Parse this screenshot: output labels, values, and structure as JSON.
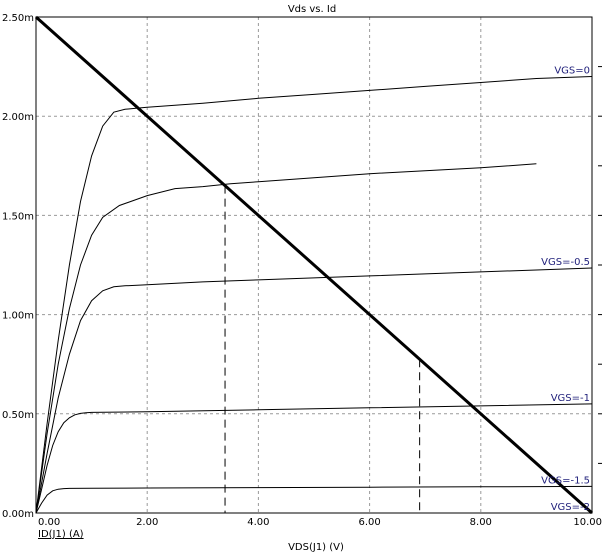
{
  "chart_data": {
    "type": "line",
    "title": "Vds vs. Id",
    "xlabel": "VDS(J1) (V)",
    "ylabel": "ID(J1) (A)",
    "xlim": [
      0,
      10
    ],
    "ylim": [
      0,
      2.5
    ],
    "x_ticks": [
      0,
      2,
      4,
      6,
      8,
      10
    ],
    "x_tick_labels": [
      "0.00",
      "2.00",
      "4.00",
      "6.00",
      "8.00",
      "10.00"
    ],
    "y_ticks": [
      0,
      0.5,
      1.0,
      1.5,
      2.0,
      2.5
    ],
    "y_tick_labels": [
      "0.00m",
      "0.50m",
      "1.00m",
      "1.50m",
      "2.00m",
      "2.50m"
    ],
    "grid": true,
    "grid_style": "dashed",
    "colors": {
      "curve": "#000000",
      "grid": "#9a9a9a",
      "label_text": "#1f1f7a",
      "axis_text": "#000000"
    },
    "series": [
      {
        "name": "VGS=0",
        "x": [
          0,
          0.2,
          0.4,
          0.6,
          0.8,
          1.0,
          1.2,
          1.4,
          1.6,
          1.8,
          2,
          3,
          4,
          5,
          6,
          7,
          8,
          9,
          10
        ],
        "y": [
          0,
          0.45,
          0.87,
          1.25,
          1.57,
          1.8,
          1.95,
          2.02,
          2.035,
          2.04,
          2.045,
          2.065,
          2.09,
          2.11,
          2.13,
          2.15,
          2.17,
          2.19,
          2.2
        ]
      },
      {
        "name": "",
        "x": [
          0,
          0.2,
          0.4,
          0.6,
          0.8,
          1.0,
          1.2,
          1.5,
          2,
          2.5,
          3,
          3.5,
          4,
          5,
          6,
          7,
          8,
          9
        ],
        "y": [
          0,
          0.4,
          0.75,
          1.03,
          1.25,
          1.4,
          1.49,
          1.55,
          1.6,
          1.635,
          1.645,
          1.66,
          1.67,
          1.69,
          1.71,
          1.725,
          1.74,
          1.76
        ]
      },
      {
        "name": "VGS=-0.5",
        "x": [
          0,
          0.2,
          0.4,
          0.6,
          0.8,
          1.0,
          1.2,
          1.4,
          1.6,
          2,
          3,
          4,
          5,
          6,
          7,
          8,
          9,
          10
        ],
        "y": [
          0,
          0.3,
          0.58,
          0.8,
          0.97,
          1.07,
          1.12,
          1.14,
          1.145,
          1.15,
          1.165,
          1.175,
          1.185,
          1.195,
          1.205,
          1.215,
          1.225,
          1.235
        ]
      },
      {
        "name": "VGS=-1",
        "x": [
          0,
          0.1,
          0.2,
          0.3,
          0.4,
          0.5,
          0.6,
          0.7,
          0.8,
          0.9,
          1.0,
          2,
          4,
          6,
          8,
          10
        ],
        "y": [
          0,
          0.12,
          0.24,
          0.34,
          0.41,
          0.455,
          0.48,
          0.495,
          0.502,
          0.505,
          0.507,
          0.51,
          0.52,
          0.53,
          0.54,
          0.55
        ]
      },
      {
        "name": "VGS=-1.5",
        "x": [
          0,
          0.1,
          0.2,
          0.3,
          0.4,
          0.5,
          0.6,
          1,
          2,
          4,
          6,
          8,
          10
        ],
        "y": [
          0,
          0.05,
          0.09,
          0.112,
          0.12,
          0.123,
          0.124,
          0.125,
          0.126,
          0.128,
          0.13,
          0.132,
          0.134
        ]
      },
      {
        "name": "VGS=-2",
        "x": [
          0,
          10
        ],
        "y": [
          0,
          0
        ]
      }
    ],
    "load_line": {
      "x": [
        0,
        10
      ],
      "y": [
        2.5,
        0
      ]
    },
    "markers": [
      {
        "x": 3.4,
        "y": 1.65
      },
      {
        "x": 6.9,
        "y": 0.775
      }
    ]
  }
}
